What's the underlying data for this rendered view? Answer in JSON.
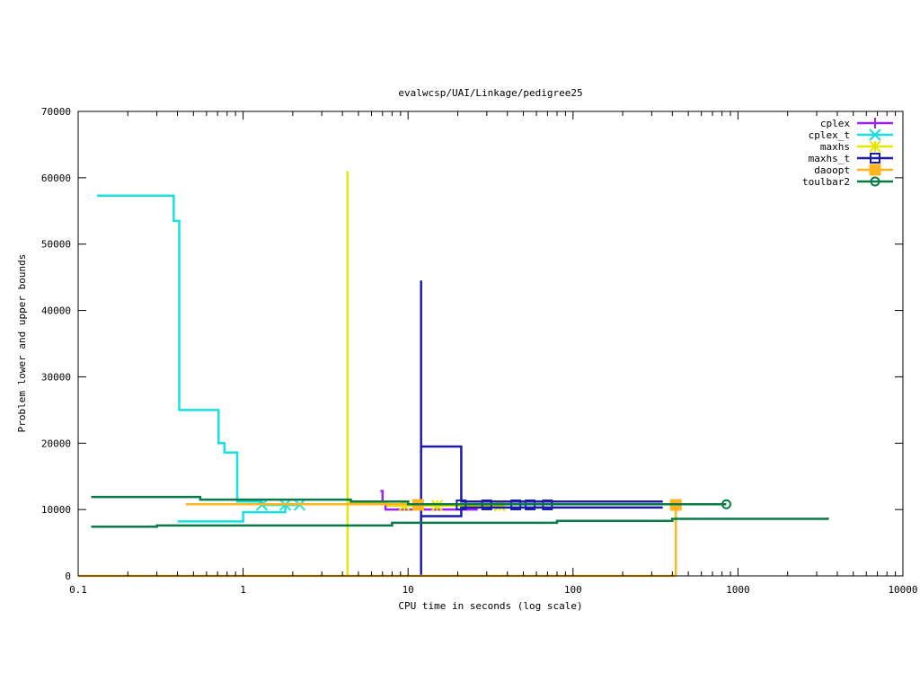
{
  "chart_data": {
    "type": "line",
    "title": "evalwcsp/UAI/Linkage/pedigree25",
    "xlabel": "CPU time in seconds (log scale)",
    "ylabel": "Problem lower and upper bounds",
    "xscale": "log",
    "xlim": [
      0.1,
      10000
    ],
    "ylim": [
      0,
      70000
    ],
    "xticks": [
      {
        "v": 0.1,
        "label": "0.1"
      },
      {
        "v": 1,
        "label": "1"
      },
      {
        "v": 10,
        "label": "10"
      },
      {
        "v": 100,
        "label": "100"
      },
      {
        "v": 1000,
        "label": "1000"
      },
      {
        "v": 10000,
        "label": "10000"
      }
    ],
    "yticks": [
      {
        "v": 0,
        "label": "0"
      },
      {
        "v": 10000,
        "label": "10000"
      },
      {
        "v": 20000,
        "label": "20000"
      },
      {
        "v": 30000,
        "label": "30000"
      },
      {
        "v": 40000,
        "label": "40000"
      },
      {
        "v": 50000,
        "label": "50000"
      },
      {
        "v": 60000,
        "label": "60000"
      },
      {
        "v": 70000,
        "label": "70000"
      }
    ],
    "grid": false,
    "legend": "top-right",
    "series": [
      {
        "name": "cplex",
        "color": "#a020f0",
        "marker": "plus",
        "lines": [
          [
            [
              6.8,
              12800
            ],
            [
              7.0,
              12800
            ],
            [
              7.0,
              11000
            ],
            [
              7.3,
              11000
            ],
            [
              7.3,
              10000
            ],
            [
              26,
              10000
            ],
            [
              26,
              10700
            ],
            [
              29,
              10700
            ]
          ]
        ],
        "markers": []
      },
      {
        "name": "cplex_t",
        "color": "#19e0e0",
        "marker": "x",
        "lines": [
          [
            [
              0.13,
              57300
            ],
            [
              0.38,
              57300
            ],
            [
              0.38,
              53500
            ],
            [
              0.41,
              53500
            ],
            [
              0.41,
              25000
            ],
            [
              0.71,
              25000
            ],
            [
              0.71,
              20000
            ],
            [
              0.77,
              20000
            ],
            [
              0.77,
              18600
            ],
            [
              0.92,
              18600
            ],
            [
              0.92,
              11200
            ],
            [
              1.3,
              11200
            ],
            [
              1.3,
              10700
            ],
            [
              2.2,
              10700
            ]
          ],
          [
            [
              0.4,
              8200
            ],
            [
              1.0,
              8200
            ],
            [
              1.0,
              9600
            ],
            [
              1.8,
              9600
            ],
            [
              1.8,
              10700
            ],
            [
              2.2,
              10700
            ]
          ]
        ],
        "markers": [
          [
            1.3,
            10700
          ],
          [
            1.8,
            10700
          ],
          [
            2.2,
            10700
          ]
        ]
      },
      {
        "name": "maxhs",
        "color": "#e6e600",
        "marker": "star",
        "lines": [
          [
            [
              4.3,
              0
            ],
            [
              4.3,
              61000
            ]
          ],
          [
            [
              4.3,
              10900
            ],
            [
              7.5,
              10900
            ],
            [
              7.5,
              10600
            ],
            [
              36,
              10600
            ]
          ]
        ],
        "markers": [
          [
            9.5,
            10600
          ],
          [
            15,
            10600
          ],
          [
            36,
            10600
          ]
        ]
      },
      {
        "name": "maxhs_t",
        "color": "#1c1ca8",
        "marker": "square",
        "lines": [
          [
            [
              12,
              0
            ],
            [
              12,
              44500
            ]
          ],
          [
            [
              12,
              19500
            ],
            [
              21,
              19500
            ],
            [
              21,
              11200
            ],
            [
              350,
              11200
            ]
          ],
          [
            [
              12,
              9000
            ],
            [
              21,
              9000
            ],
            [
              21,
              10300
            ],
            [
              350,
              10300
            ]
          ]
        ],
        "markers": [
          [
            21,
            10700
          ],
          [
            30,
            10700
          ],
          [
            45,
            10700
          ],
          [
            55,
            10700
          ],
          [
            70,
            10700
          ]
        ]
      },
      {
        "name": "daoopt",
        "color": "#ffb520",
        "marker": "filled-square",
        "lines": [
          [
            [
              0.1,
              0
            ],
            [
              420,
              0
            ]
          ],
          [
            [
              0.45,
              10800
            ],
            [
              420,
              10800
            ],
            [
              420,
              0
            ]
          ]
        ],
        "markers": [
          [
            11.5,
            10700
          ],
          [
            420,
            10700
          ]
        ]
      },
      {
        "name": "toulbar2",
        "color": "#087a46",
        "marker": "circle",
        "lines": [
          [
            [
              0.12,
              11900
            ],
            [
              0.55,
              11900
            ],
            [
              0.55,
              11500
            ],
            [
              4.5,
              11500
            ],
            [
              4.5,
              11200
            ],
            [
              10,
              11200
            ],
            [
              10,
              10800
            ],
            [
              850,
              10800
            ]
          ],
          [
            [
              0.12,
              7400
            ],
            [
              0.3,
              7400
            ],
            [
              0.3,
              7600
            ],
            [
              8,
              7600
            ],
            [
              8,
              8000
            ],
            [
              80,
              8000
            ],
            [
              80,
              8300
            ],
            [
              400,
              8300
            ],
            [
              400,
              8600
            ],
            [
              3500,
              8600
            ],
            [
              3500,
              8800
            ]
          ]
        ],
        "markers": [
          [
            850,
            10800
          ]
        ]
      }
    ]
  }
}
